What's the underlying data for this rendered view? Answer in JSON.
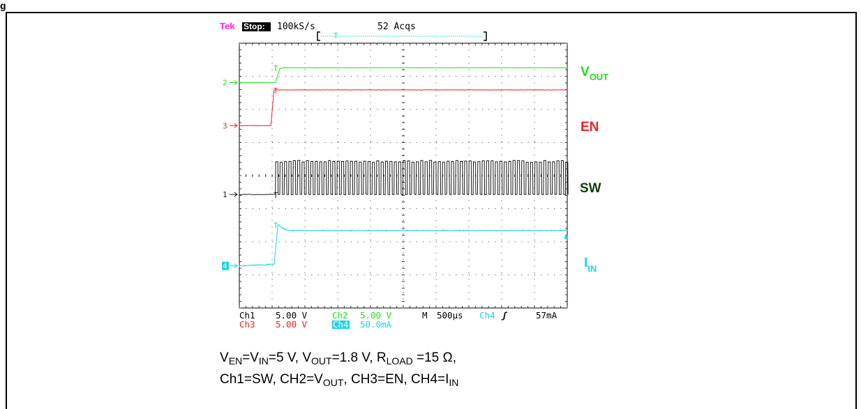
{
  "figure_label": "g",
  "scope": {
    "brand": "Tek",
    "run_state": "Stop:",
    "sample_rate": "100kS/s",
    "acquisitions": "52 Acqs",
    "readout": {
      "ch1_name": "Ch1",
      "ch1_scale": "5.00 V",
      "ch2_name": "Ch2",
      "ch2_scale": "5.00 V",
      "ch3_name": "Ch3",
      "ch3_scale": "5.00 V",
      "ch4_name": "Ch4",
      "ch4_scale": "50.0mA",
      "timebase_prefix": "M",
      "timebase": "500µs",
      "trigger_source": "Ch4",
      "trigger_slope": "ʃ",
      "trigger_level": "57mA"
    },
    "markers": {
      "ch2": "2",
      "ch3": "3",
      "ch1": "1",
      "ch4": "4"
    },
    "trigger_marker": "T"
  },
  "colors": {
    "vout": "#22dd22",
    "en": "#ee2222",
    "sw": "#1a1a1a",
    "iin": "#22d0e0",
    "tek": "#ff22dd",
    "sw_label": "#104010",
    "grid": "#333333"
  },
  "chart_data": {
    "type": "line",
    "title": "",
    "xlabel": "",
    "ylabel": "",
    "x_unit": "µs",
    "x_range": [
      -1820,
      3180
    ],
    "y_range_divisions": [
      0,
      8
    ],
    "grid": true,
    "time_per_division": "500µs",
    "series": [
      {
        "name": "VOUT",
        "channel": "CH2",
        "scale": "5.00 V/div",
        "baseline_div": 6.81,
        "points": [
          [
            -1820,
            0.0
          ],
          [
            -1270,
            0.0
          ],
          [
            -1200,
            0.43
          ],
          [
            -1130,
            0.45
          ],
          [
            3180,
            0.45
          ]
        ]
      },
      {
        "name": "EN",
        "channel": "CH3",
        "scale": "5.00 V/div",
        "baseline_div": 5.51,
        "points": [
          [
            -1820,
            0.0
          ],
          [
            -1340,
            0.0
          ],
          [
            -1290,
            1.08
          ],
          [
            3180,
            1.08
          ]
        ]
      },
      {
        "name": "SW",
        "channel": "CH1",
        "scale": "5.00 V/div",
        "baseline_div": 3.43,
        "points": [
          [
            -1820,
            0.0
          ],
          [
            -1270,
            0.0
          ],
          [
            -1250,
            1.0
          ],
          [
            3180,
            1.0
          ]
        ],
        "note": "switching waveform toggles between 0 and 1 div after EN rising edge"
      },
      {
        "name": "IIN",
        "channel": "CH4",
        "scale": "50.0mA/div",
        "baseline_div": 1.27,
        "points": [
          [
            -1820,
            0.0
          ],
          [
            -1290,
            0.05
          ],
          [
            -1230,
            1.25
          ],
          [
            -1140,
            1.12
          ],
          [
            -1050,
            1.07
          ],
          [
            -880,
            1.07
          ],
          [
            3180,
            1.07
          ]
        ]
      }
    ]
  },
  "labels": {
    "vout": {
      "main": "V",
      "sub": "OUT"
    },
    "en": {
      "main": "EN",
      "sub": ""
    },
    "sw": {
      "main": "SW",
      "sub": ""
    },
    "iin": {
      "main": "I",
      "sub": "IN"
    }
  },
  "caption": {
    "line1_parts": [
      {
        "t": "V"
      },
      {
        "sub": "EN"
      },
      {
        "t": "=V"
      },
      {
        "sub": "IN"
      },
      {
        "t": "=5 V, V"
      },
      {
        "sub": "OUT"
      },
      {
        "t": "=1.8 V, R"
      },
      {
        "sub": "LOAD"
      },
      {
        "t": " =15 Ω,"
      }
    ],
    "line2_parts": [
      {
        "t": "Ch1=SW, CH2=V"
      },
      {
        "sub": "OUT"
      },
      {
        "t": ", CH3=EN, CH4=I"
      },
      {
        "sub": "IN"
      }
    ]
  }
}
